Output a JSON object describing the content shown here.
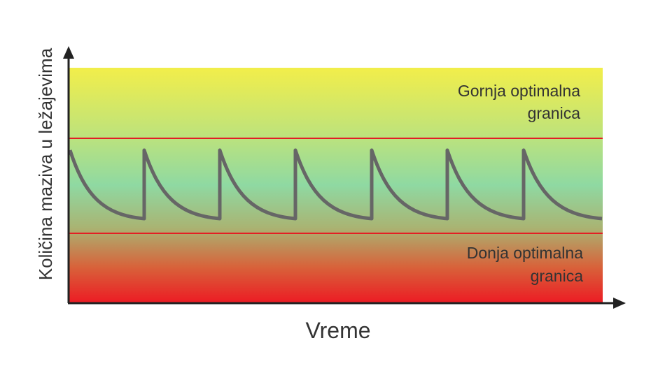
{
  "axes": {
    "y_label": "Količina maziva u ležajevima",
    "x_label": "Vreme"
  },
  "zones": {
    "upper": {
      "lines": [
        "Gornja optimalna",
        "granica"
      ]
    },
    "lower": {
      "lines": [
        "Donja optimalna",
        "granica"
      ]
    }
  }
}
